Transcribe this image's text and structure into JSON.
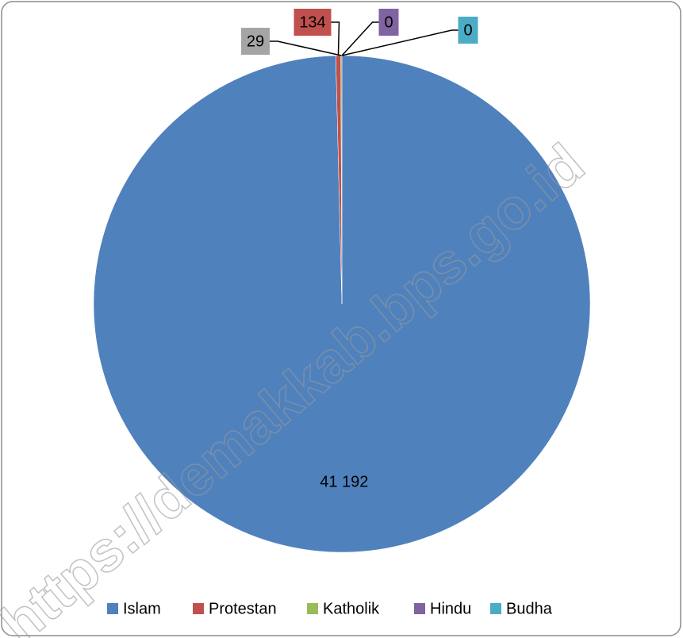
{
  "chart_data": {
    "type": "pie",
    "categories": [
      "Islam",
      "Protestan",
      "Katholik",
      "Hindu",
      "Budha"
    ],
    "values": [
      41192,
      134,
      29,
      0,
      0
    ],
    "value_labels": [
      "41 192",
      "134",
      "29",
      "0",
      "0"
    ],
    "colors": [
      "#4f81bd",
      "#c0504d",
      "#9bbb59",
      "#8064a2",
      "#4bacc6"
    ],
    "legend": "bottom",
    "watermark": "https://demakkab.bps.go.id"
  }
}
